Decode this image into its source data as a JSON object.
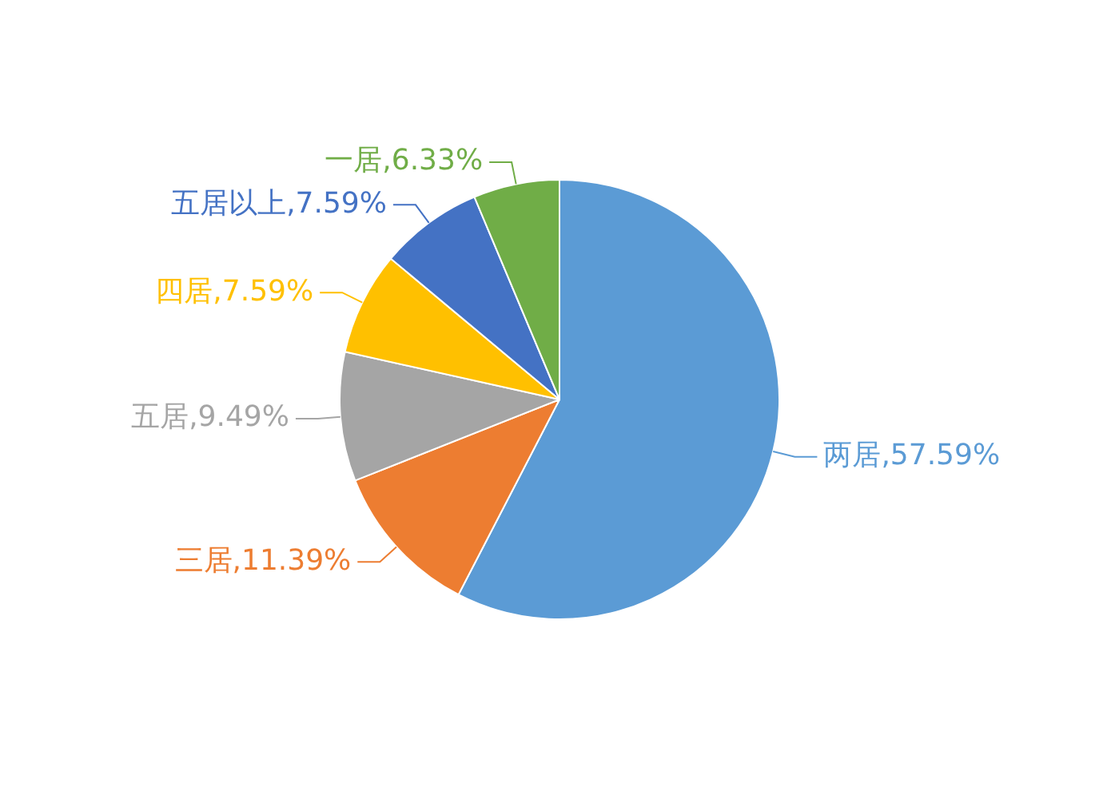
{
  "chart_data": {
    "type": "pie",
    "categories": [
      "两居",
      "三居",
      "五居",
      "四居",
      "五居以上",
      "一居"
    ],
    "values": [
      57.59,
      11.39,
      9.49,
      7.59,
      7.59,
      6.33
    ],
    "colors": [
      "#5b9bd5",
      "#ed7d31",
      "#a5a5a5",
      "#ffc000",
      "#4472c4",
      "#70ad47"
    ],
    "value_labels": [
      "57.59%",
      "11.39%",
      "9.49%",
      "7.59%",
      "7.59%",
      "6.33%"
    ],
    "legend": false
  }
}
